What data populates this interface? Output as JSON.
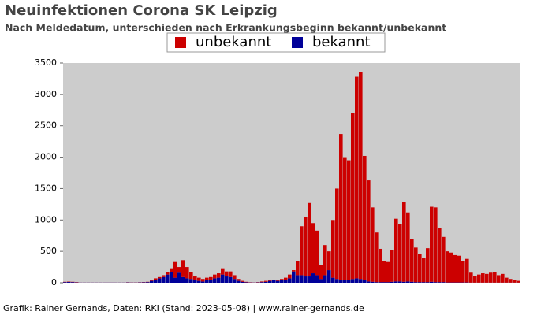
{
  "chart_data": {
    "type": "stacked-bar",
    "title": "Neuinfektionen Corona SK Leipzig",
    "subtitle": "Nach Meldedatum, unterschieden nach Erkrankungsbeginn bekannt/unbekannt",
    "footer": "Grafik: Rainer Gernands, Daten: RKI (Stand: 2023-05-08) | www.rainer-gernands.de",
    "categories": [
      null,
      null,
      null,
      null,
      null,
      null,
      null,
      null,
      null,
      null,
      null,
      null,
      null,
      null,
      null,
      null,
      null,
      null,
      null,
      null,
      null,
      null,
      null,
      null,
      null,
      null,
      null,
      null,
      null,
      null,
      null,
      null,
      null,
      null,
      null,
      null,
      null,
      null,
      null,
      null,
      null,
      null,
      null,
      null,
      null,
      null,
      null,
      null,
      null,
      null,
      null,
      null,
      null,
      null,
      null,
      null,
      null,
      null,
      null,
      null,
      null,
      null,
      null,
      null,
      null,
      null,
      null,
      null,
      null,
      null,
      null,
      null,
      null,
      null,
      null,
      null,
      null,
      null,
      null,
      null,
      null,
      null,
      null,
      null,
      null,
      null,
      null,
      null,
      null,
      null,
      null,
      null,
      null,
      null,
      null,
      null,
      null,
      null,
      null,
      null,
      null,
      null,
      null,
      null,
      null,
      null,
      null,
      null,
      null,
      null,
      null,
      null,
      null,
      null,
      null,
      null
    ],
    "series": [
      {
        "name": "unbekannt",
        "color": "#cc0000",
        "values": [
          5,
          6,
          5,
          5,
          1,
          1,
          1,
          1,
          1,
          1,
          1,
          1,
          1,
          1,
          1,
          1,
          3,
          2,
          2,
          3,
          4,
          5,
          10,
          20,
          20,
          30,
          40,
          60,
          250,
          90,
          270,
          180,
          110,
          60,
          50,
          40,
          40,
          40,
          60,
          70,
          100,
          80,
          90,
          60,
          30,
          15,
          7,
          4,
          2,
          5,
          10,
          15,
          10,
          10,
          15,
          20,
          30,
          60,
          20,
          230,
          780,
          950,
          1170,
          800,
          710,
          220,
          480,
          300,
          920,
          1440,
          2320,
          1960,
          1900,
          2640,
          3210,
          3300,
          1980,
          1610,
          1185,
          790,
          530,
          330,
          320,
          505,
          1000,
          920,
          1265,
          1100,
          685,
          550,
          450,
          390,
          540,
          1195,
          1190,
          860,
          720,
          495,
          475,
          435,
          425,
          345,
          375,
          158,
          108,
          128,
          148,
          138,
          158,
          168,
          118,
          138,
          78,
          58,
          38,
          28
        ]
      },
      {
        "name": "bekannt",
        "color": "#000099",
        "values": [
          10,
          12,
          10,
          5,
          2,
          2,
          2,
          2,
          2,
          2,
          2,
          2,
          2,
          2,
          2,
          2,
          5,
          3,
          3,
          5,
          6,
          10,
          30,
          50,
          70,
          90,
          130,
          170,
          80,
          160,
          90,
          70,
          60,
          40,
          30,
          20,
          40,
          50,
          70,
          80,
          130,
          100,
          90,
          60,
          30,
          15,
          8,
          4,
          3,
          5,
          10,
          15,
          30,
          40,
          30,
          40,
          50,
          70,
          180,
          120,
          120,
          100,
          100,
          150,
          120,
          60,
          120,
          200,
          80,
          60,
          50,
          40,
          50,
          60,
          70,
          60,
          40,
          20,
          15,
          10,
          10,
          10,
          10,
          15,
          20,
          20,
          15,
          20,
          15,
          10,
          10,
          10,
          10,
          15,
          10,
          10,
          10,
          5,
          5,
          5,
          5,
          5,
          5,
          2,
          2,
          2,
          2,
          2,
          2,
          2,
          2,
          2,
          2,
          2,
          2,
          2
        ]
      }
    ],
    "ylim": [
      0,
      3500
    ],
    "yticks": [
      0,
      500,
      1000,
      1500,
      2000,
      2500,
      3000,
      3500
    ],
    "grid": false
  }
}
